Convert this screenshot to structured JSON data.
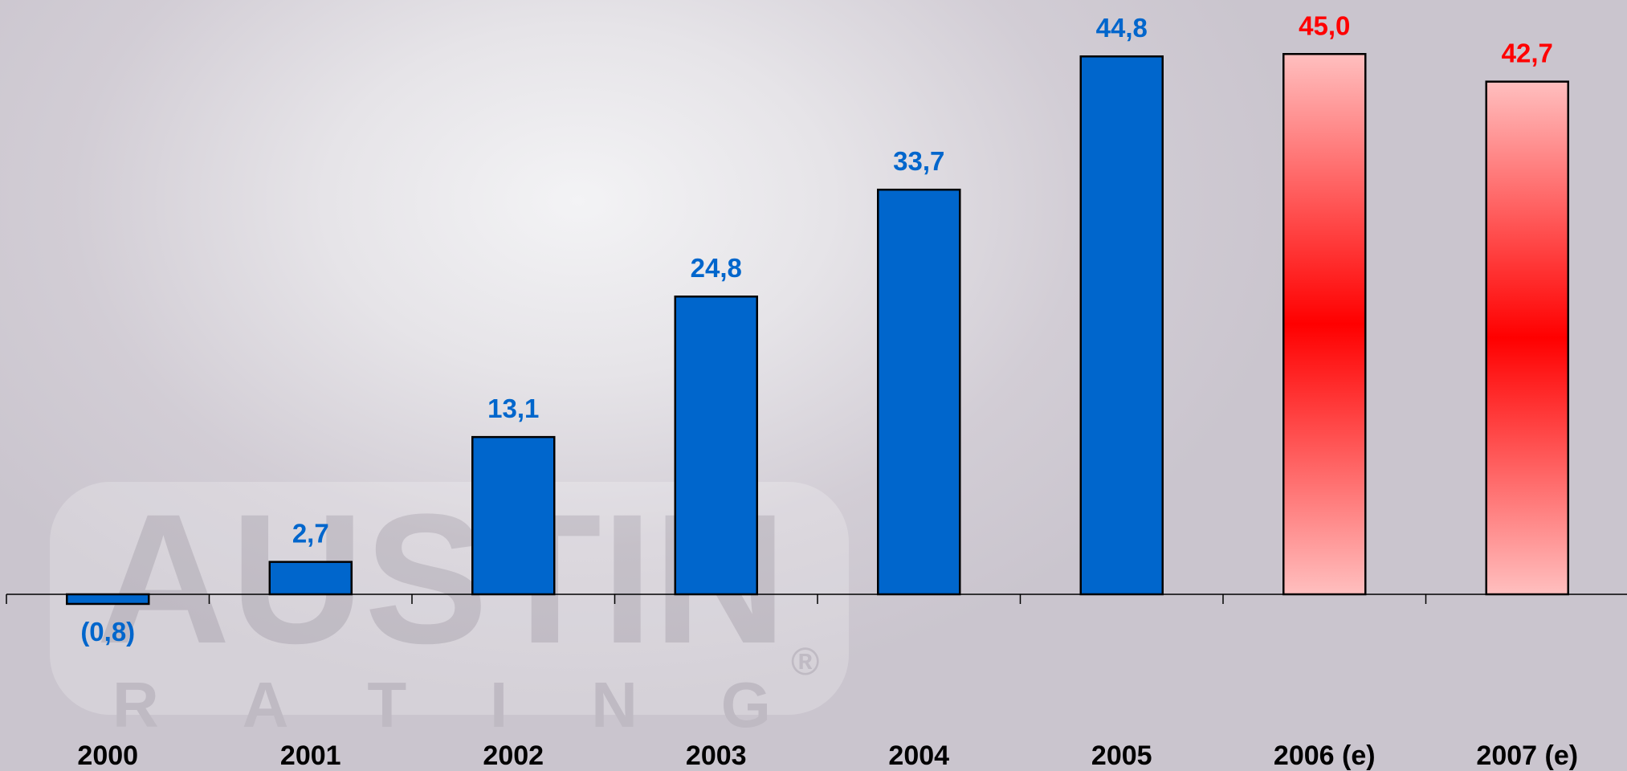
{
  "watermark": {
    "logo_word": "AUSTIN",
    "logo_sub": "RATING",
    "registered_mark": "®"
  },
  "colors": {
    "actual_bar": "#0066cc",
    "estimate_bar_edge": "#ffbfbf",
    "estimate_bar_center": "#ff0000",
    "actual_label": "#0066cc",
    "estimate_label": "#ff0000"
  },
  "chart_data": {
    "type": "bar",
    "categories": [
      "2000",
      "2001",
      "2002",
      "2003",
      "2004",
      "2005",
      "2006 (e)",
      "2007 (e)"
    ],
    "values": [
      -0.8,
      2.7,
      13.1,
      24.8,
      33.7,
      44.8,
      45.0,
      42.7
    ],
    "value_labels": [
      "(0,8)",
      "2,7",
      "13,1",
      "24,8",
      "33,7",
      "44,8",
      "45,0",
      "42,7"
    ],
    "estimated": [
      false,
      false,
      false,
      false,
      false,
      false,
      true,
      true
    ],
    "title": "",
    "xlabel": "",
    "ylabel": "",
    "grid": false,
    "legend": "none"
  }
}
